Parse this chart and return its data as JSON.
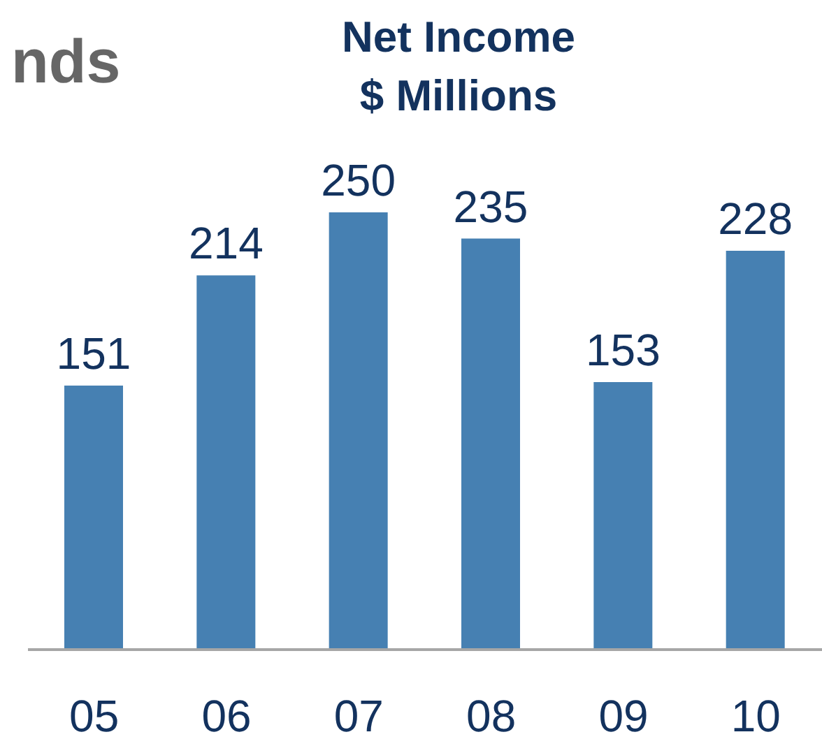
{
  "chart_data": {
    "type": "bar",
    "title": "Net Income\n$ Millions",
    "annotations": [
      "nds"
    ],
    "categories": [
      "05",
      "06",
      "07",
      "08",
      "09",
      "10"
    ],
    "values": [
      151,
      214,
      250,
      235,
      153,
      228
    ],
    "color": "#4680b2",
    "data_labels": true
  }
}
